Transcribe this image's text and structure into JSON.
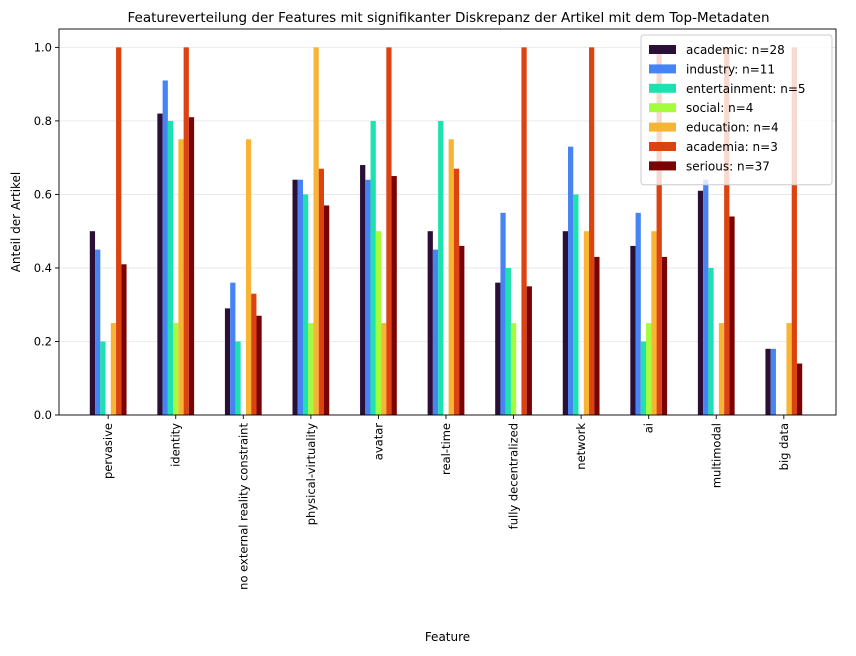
{
  "chart_data": {
    "type": "bar",
    "title": "Featureverteilung der Features mit signifikanter Diskrepanz der Artikel mit dem Top-Metadaten",
    "xlabel": "Feature",
    "ylabel": "Anteil der Artikel",
    "ylim": [
      0,
      1.05
    ],
    "yticks": [
      "0.0",
      "0.2",
      "0.4",
      "0.6",
      "0.8",
      "1.0"
    ],
    "grid": "horizontal",
    "legend_position": "top-right",
    "categories": [
      "pervasive",
      "identity",
      "no external reality constraint",
      "physical-virtuality",
      "avatar",
      "real-time",
      "fully decentralized",
      "network",
      "ai",
      "multimodal",
      "big data"
    ],
    "series": [
      {
        "name": "academic: n=28",
        "color": "#2b0f36",
        "values": [
          0.5,
          0.82,
          0.29,
          0.64,
          0.68,
          0.5,
          0.36,
          0.5,
          0.46,
          0.61,
          0.18
        ]
      },
      {
        "name": "industry: n=11",
        "color": "#4684f4",
        "values": [
          0.45,
          0.91,
          0.36,
          0.64,
          0.64,
          0.45,
          0.55,
          0.73,
          0.55,
          0.64,
          0.18
        ]
      },
      {
        "name": "entertainment: n=5",
        "color": "#1ee1b0",
        "values": [
          0.2,
          0.8,
          0.2,
          0.6,
          0.8,
          0.8,
          0.4,
          0.6,
          0.2,
          0.4,
          0.0
        ]
      },
      {
        "name": "social: n=4",
        "color": "#a4fc3c",
        "values": [
          0.0,
          0.25,
          0.0,
          0.25,
          0.5,
          0.0,
          0.25,
          0.0,
          0.25,
          0.0,
          0.0
        ]
      },
      {
        "name": "education: n=4",
        "color": "#f8b535",
        "values": [
          0.25,
          0.75,
          0.75,
          1.0,
          0.25,
          0.75,
          0.0,
          0.5,
          0.5,
          0.25,
          0.25
        ]
      },
      {
        "name": "academia: n=3",
        "color": "#dd4310",
        "values": [
          1.0,
          1.0,
          0.33,
          0.67,
          1.0,
          0.67,
          1.0,
          1.0,
          1.0,
          1.0,
          1.0
        ]
      },
      {
        "name": "serious: n=37",
        "color": "#7a0403",
        "values": [
          0.41,
          0.81,
          0.27,
          0.57,
          0.65,
          0.46,
          0.35,
          0.43,
          0.43,
          0.54,
          0.14
        ]
      }
    ]
  }
}
